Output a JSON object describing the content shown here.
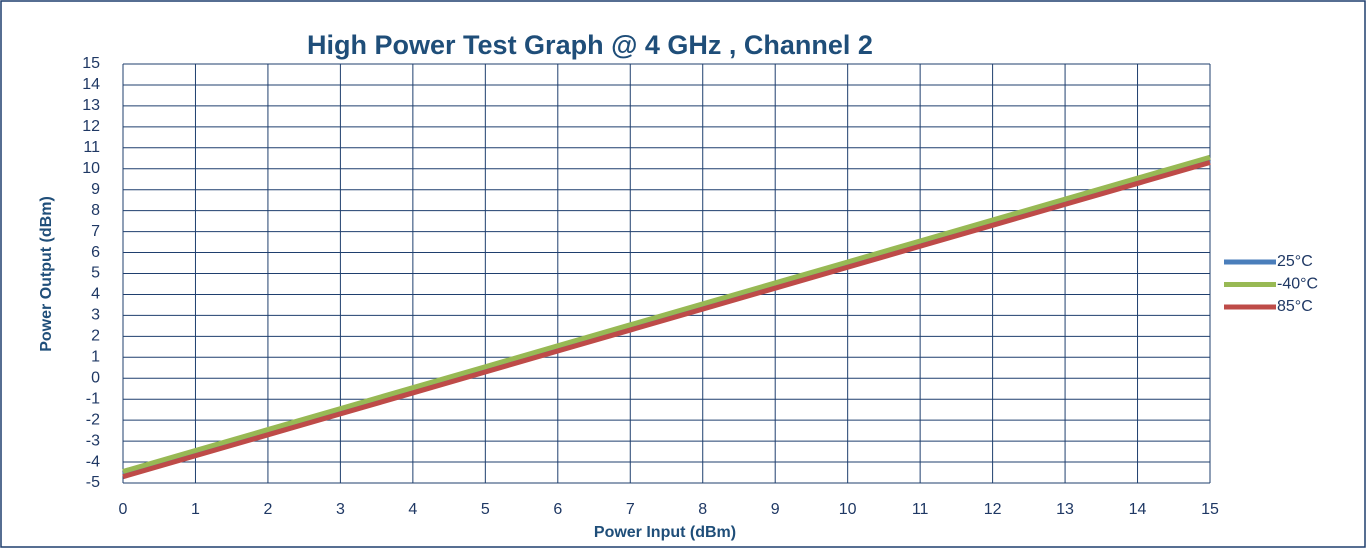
{
  "chart_data": {
    "type": "line",
    "title": "High Power Test Graph @ 4 GHz , Channel 2",
    "xlabel": "Power Input (dBm)",
    "ylabel": "Power Output  (dBm)",
    "x": [
      0,
      1,
      2,
      3,
      4,
      5,
      6,
      7,
      8,
      9,
      10,
      11,
      12,
      13,
      14,
      15
    ],
    "series": [
      {
        "name": "25°C",
        "color": "#4a7ebb",
        "values": [
          -4.6,
          -3.6,
          -2.6,
          -1.6,
          -0.6,
          0.4,
          1.4,
          2.4,
          3.4,
          4.4,
          5.4,
          6.4,
          7.4,
          8.4,
          9.4,
          10.4
        ]
      },
      {
        "name": "-40°C",
        "color": "#98b954",
        "values": [
          -4.45,
          -3.45,
          -2.45,
          -1.45,
          -0.45,
          0.55,
          1.55,
          2.55,
          3.55,
          4.55,
          5.55,
          6.55,
          7.55,
          8.55,
          9.55,
          10.55
        ]
      },
      {
        "name": "85°C",
        "color": "#be4b48",
        "values": [
          -4.7,
          -3.7,
          -2.7,
          -1.7,
          -0.7,
          0.3,
          1.3,
          2.3,
          3.3,
          4.3,
          5.3,
          6.3,
          7.3,
          8.3,
          9.3,
          10.3
        ]
      }
    ],
    "xlim": [
      0,
      15
    ],
    "xticks": [
      0,
      1,
      2,
      3,
      4,
      5,
      6,
      7,
      8,
      9,
      10,
      11,
      12,
      13,
      14,
      15
    ],
    "ylim": [
      -5,
      15
    ],
    "yticks": [
      -5,
      -4,
      -3,
      -2,
      -1,
      0,
      1,
      2,
      3,
      4,
      5,
      6,
      7,
      8,
      9,
      10,
      11,
      12,
      13,
      14,
      15
    ],
    "grid": true,
    "legend": "right"
  }
}
